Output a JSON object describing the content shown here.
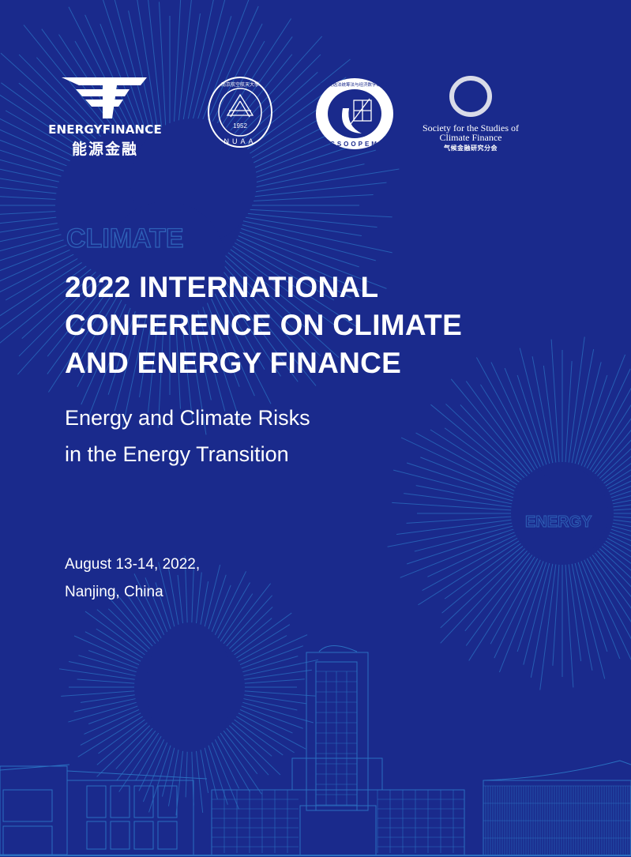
{
  "colors": {
    "background": "#1a2a8c",
    "line": "#2a6fc0",
    "text": "#ffffff"
  },
  "logos": {
    "energyfinance": {
      "icon": "energyfinance-f-icon",
      "en": "ENERGYFINANCE",
      "cn": "能源金融"
    },
    "nuaa": {
      "icon": "nuaa-seal",
      "cn": "南京航空航天大學",
      "year": "1952",
      "en": "NUAA"
    },
    "csoopem": {
      "icon": "csoopem-seal",
      "cn": "中国优选法统筹法与经济数学研究会",
      "en": "CSOOPEM"
    },
    "society": {
      "icon": "ring-icon",
      "line1": "Society for the Studies of",
      "line2": "Climate Finance",
      "cn": "气候金融研究分会"
    }
  },
  "background_words": {
    "climate": "CLIMATE",
    "energy": "ENERGY"
  },
  "title": {
    "line1": "2022 INTERNATIONAL",
    "line2": "CONFERENCE ON CLIMATE",
    "line3": "AND ENERGY FINANCE"
  },
  "subtitle": {
    "line1": "Energy and Climate Risks",
    "line2": "in the Energy Transition"
  },
  "event": {
    "date": "August 13-14, 2022,",
    "location": "Nanjing, China"
  }
}
